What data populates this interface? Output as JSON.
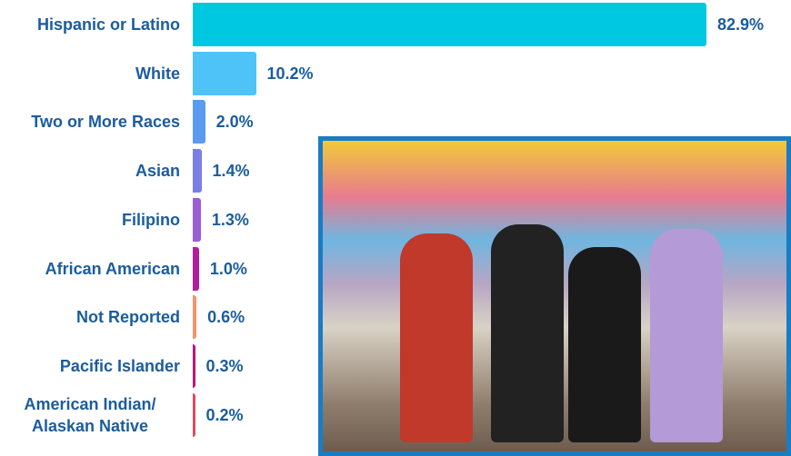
{
  "chart_data": {
    "type": "bar",
    "orientation": "horizontal",
    "categories": [
      "Hispanic or Latino",
      "White",
      "Two or More Races",
      "Asian",
      "Filipino",
      "African American",
      "Not Reported",
      "Pacific Islander",
      "American Indian/ Alaskan Native"
    ],
    "values": [
      82.9,
      10.2,
      2.0,
      1.4,
      1.3,
      1.0,
      0.6,
      0.3,
      0.2
    ],
    "value_labels": [
      "82.9%",
      "10.2%",
      "2.0%",
      "1.4%",
      "1.3%",
      "1.0%",
      "0.6%",
      "0.3%",
      "0.2%"
    ],
    "colors": [
      "#00c8e0",
      "#4dc3f7",
      "#5b9bef",
      "#7a7fe4",
      "#9a5fd4",
      "#b0209e",
      "#f2956c",
      "#c2137a",
      "#e04a5c"
    ]
  }
}
